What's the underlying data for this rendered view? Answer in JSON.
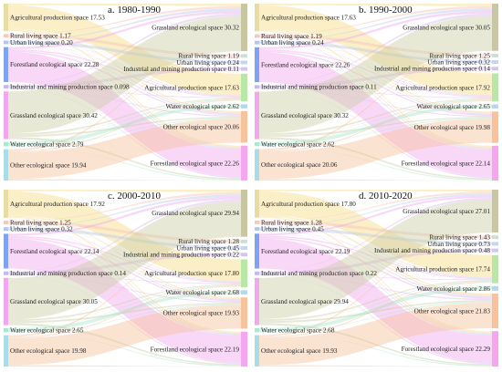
{
  "panels": [
    {
      "title": "a. 1980-1990",
      "left": [
        {
          "name": "Agricultural production space",
          "value": "17.53"
        },
        {
          "name": "Rural living space",
          "value": "1.17"
        },
        {
          "name": "Urban living space",
          "value": "0.20"
        },
        {
          "name": "Forestland ecological space",
          "value": "22.28"
        },
        {
          "name": "Industrial and mining production space",
          "value": "0.098"
        },
        {
          "name": "Grassland ecological space",
          "value": "30.42"
        },
        {
          "name": "Water ecological space",
          "value": "2.79"
        },
        {
          "name": "Other ecological space",
          "value": "19.94"
        }
      ],
      "right": [
        {
          "name": "Grassland ecological space",
          "value": "30.32"
        },
        {
          "name": "Rural living space",
          "value": "1.19"
        },
        {
          "name": "Urban living space",
          "value": "0.24"
        },
        {
          "name": "Industrial and mining production space",
          "value": "0.11"
        },
        {
          "name": "Agricultural production space",
          "value": "17.63"
        },
        {
          "name": "Water ecological space",
          "value": "2.62"
        },
        {
          "name": "Other ecological space",
          "value": "20.06"
        },
        {
          "name": "Forestland ecological space",
          "value": "22.26"
        }
      ]
    },
    {
      "title": "b. 1990-2000",
      "left": [
        {
          "name": "Agricultural production space",
          "value": "17.63"
        },
        {
          "name": "Rural living space",
          "value": "1.19"
        },
        {
          "name": "Urban living space",
          "value": "0.24"
        },
        {
          "name": "Forestland ecological space",
          "value": "22.26"
        },
        {
          "name": "Industrial and mining production space",
          "value": "0.11"
        },
        {
          "name": "Grassland ecological space",
          "value": "30.32"
        },
        {
          "name": "Water ecological space",
          "value": "2.62"
        },
        {
          "name": "Other ecological space",
          "value": "20.06"
        }
      ],
      "right": [
        {
          "name": "Grassland ecological space",
          "value": "30.05"
        },
        {
          "name": "Rural living space",
          "value": "1.25"
        },
        {
          "name": "Urban living space",
          "value": "0.32"
        },
        {
          "name": "Industrial and mining production space",
          "value": "0.14"
        },
        {
          "name": "Agricultural production space",
          "value": "17.92"
        },
        {
          "name": "Water ecological space",
          "value": "2.65"
        },
        {
          "name": "Other ecological space",
          "value": "19.98"
        },
        {
          "name": "Forestland ecological space",
          "value": "22.14"
        }
      ]
    },
    {
      "title": "c. 2000-2010",
      "left": [
        {
          "name": "Agricultural production space",
          "value": "17.92"
        },
        {
          "name": "Rural living space",
          "value": "1.25"
        },
        {
          "name": "Urban living space",
          "value": "0.32"
        },
        {
          "name": "Forestland ecological space",
          "value": "22.14"
        },
        {
          "name": "Industrial and mining production space",
          "value": "0.14"
        },
        {
          "name": "Grassland ecological space",
          "value": "30.05"
        },
        {
          "name": "Water ecological space",
          "value": "2.65"
        },
        {
          "name": "Other ecological space",
          "value": "19.98"
        }
      ],
      "right": [
        {
          "name": "Grassland ecological space",
          "value": "29.94"
        },
        {
          "name": "Rural living space",
          "value": "1.28"
        },
        {
          "name": "Urban living space",
          "value": "0.45"
        },
        {
          "name": "Industrial and mining production space",
          "value": "0.22"
        },
        {
          "name": "Agricultural production space",
          "value": "17.80"
        },
        {
          "name": "Water ecological space",
          "value": "2.68"
        },
        {
          "name": "Other ecological space",
          "value": "19.93"
        },
        {
          "name": "Forestland ecological space",
          "value": "22.19"
        }
      ]
    },
    {
      "title": "d. 2010-2020",
      "left": [
        {
          "name": "Agricultural production space",
          "value": "17.80"
        },
        {
          "name": "Rural living space",
          "value": "1.28"
        },
        {
          "name": "Urban living space",
          "value": "0.45"
        },
        {
          "name": "Forestland ecological space",
          "value": "22.19"
        },
        {
          "name": "Industrial and mining production space",
          "value": "0.22"
        },
        {
          "name": "Grassland ecological space",
          "value": "29.94"
        },
        {
          "name": "Water ecological space",
          "value": "2.68"
        },
        {
          "name": "Other ecological space",
          "value": "19.93"
        }
      ],
      "right": [
        {
          "name": "Grassland ecological space",
          "value": "27.01"
        },
        {
          "name": "Rural living space",
          "value": "1.43"
        },
        {
          "name": "Urban living space",
          "value": "0.73"
        },
        {
          "name": "Industrial and mining production space",
          "value": "0.48"
        },
        {
          "name": "Agricultural production space",
          "value": "17.74"
        },
        {
          "name": "Water ecological space",
          "value": "2.86"
        },
        {
          "name": "Other ecological space",
          "value": "21.83"
        },
        {
          "name": "Forestland ecological space",
          "value": "22.29"
        }
      ]
    }
  ],
  "colors": {
    "Agricultural production space": "#f6dc86",
    "Rural living space": "#f7c4b6",
    "Urban living space": "#b9c9ea",
    "Forestland ecological space": "#f2a6ee",
    "Industrial and mining production space": "#d6b9ee",
    "Grassland ecological space": "#cdcba4",
    "Water ecological space": "#a8e6cc",
    "Other ecological space": "#f7c29c"
  },
  "leftNodeColors": {
    "Agricultural production space": "#e7dca4",
    "Rural living space": "#f4c9be",
    "Urban living space": "#b3c5f0",
    "Forestland ecological space": "#7ea3f2",
    "Industrial and mining production space": "#c9b6f4",
    "Grassland ecological space": "#f1a6ee",
    "Water ecological space": "#a8ead0",
    "Other ecological space": "#a8dde8"
  },
  "rightNodeColors": {
    "Grassland ecological space": "#c9c7a2",
    "Rural living space": "#c9e0d2",
    "Urban living space": "#c2d7ef",
    "Industrial and mining production space": "#d1c7ee",
    "Agricultural production space": "#b7e8a6",
    "Water ecological space": "#b6d6f2",
    "Other ecological space": "#f7c29c",
    "Forestland ecological space": "#f6a6f0"
  }
}
